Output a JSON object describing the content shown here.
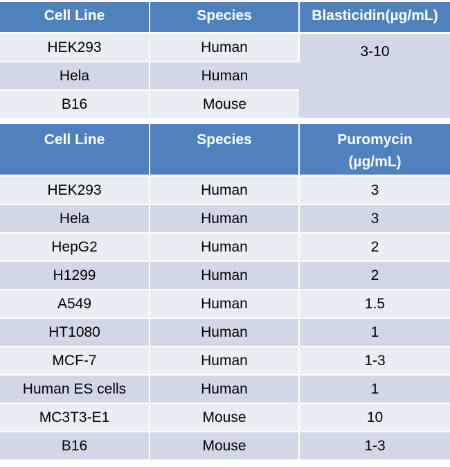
{
  "blasticidin_table": {
    "headers": [
      "Cell Line",
      "Species",
      "Blasticidin(µg/mL)"
    ],
    "rows": [
      {
        "cell_line": "HEK293",
        "species": "Human"
      },
      {
        "cell_line": "Hela",
        "species": "Human"
      },
      {
        "cell_line": "B16",
        "species": "Mouse"
      }
    ],
    "merged_value": "3-10"
  },
  "puromycin_table": {
    "headers": [
      "Cell Line",
      "Species",
      "Puromycin",
      "(µg/mL)"
    ],
    "rows": [
      {
        "cell_line": "HEK293",
        "species": "Human",
        "value": "3"
      },
      {
        "cell_line": "Hela",
        "species": "Human",
        "value": "3"
      },
      {
        "cell_line": "HepG2",
        "species": "Human",
        "value": "2"
      },
      {
        "cell_line": "H1299",
        "species": "Human",
        "value": "2"
      },
      {
        "cell_line": "A549",
        "species": "Human",
        "value": "1.5"
      },
      {
        "cell_line": "HT1080",
        "species": "Human",
        "value": "1"
      },
      {
        "cell_line": "MCF-7",
        "species": "Human",
        "value": "1-3"
      },
      {
        "cell_line": "Human ES cells",
        "species": "Human",
        "value": "1"
      },
      {
        "cell_line": "MC3T3-E1",
        "species": "Mouse",
        "value": "10"
      },
      {
        "cell_line": "B16",
        "species": "Mouse",
        "value": "1-3"
      }
    ]
  },
  "colors": {
    "header_bg": "#4f81bd",
    "row_light": "#e9edf4",
    "row_dark": "#d0d8e8"
  }
}
